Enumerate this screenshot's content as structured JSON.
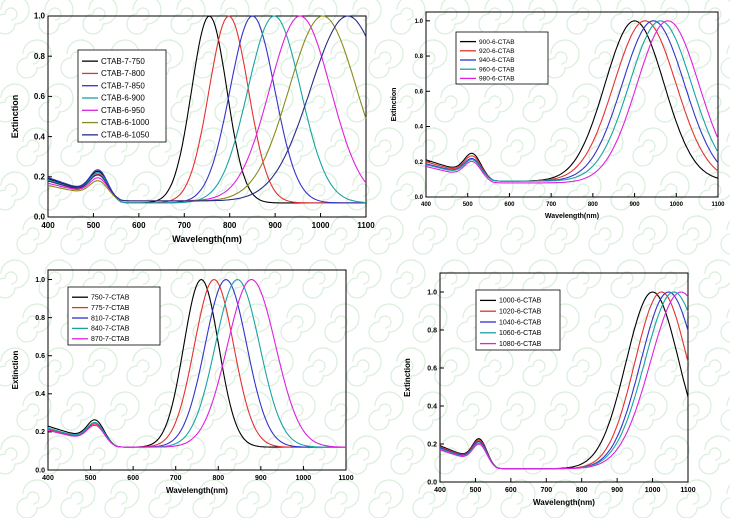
{
  "chart_data": [
    {
      "type": "line",
      "xlabel": "Wavelength(nm)",
      "ylabel": "Extinction",
      "xlim": [
        400,
        1100
      ],
      "ylim": [
        0,
        1.0
      ],
      "xticks": [
        "400",
        "500",
        "600",
        "700",
        "800",
        "900",
        "1000",
        "1100"
      ],
      "yticks": [
        "0.0",
        "0.2",
        "0.4",
        "0.6",
        "0.8",
        "1.0"
      ],
      "legend": "top-left",
      "series": [
        {
          "name": "CTAB-7-750",
          "color": "#000000",
          "peak": 755,
          "width": 52,
          "ir": 0.06,
          "iv": 0.29,
          "floor": 0.07
        },
        {
          "name": "CTAB-7-800",
          "color": "#e53030",
          "peak": 798,
          "width": 58,
          "ir": 0.04,
          "iv": 0.27,
          "floor": 0.07
        },
        {
          "name": "CTAB-7-850",
          "color": "#3333cc",
          "peak": 850,
          "width": 66,
          "ir": 0.07,
          "iv": 0.3,
          "floor": 0.07
        },
        {
          "name": "CTAB-6-900",
          "color": "#1aa3a3",
          "peak": 898,
          "width": 78,
          "ir": 0.11,
          "iv": 0.28,
          "floor": 0.07
        },
        {
          "name": "CTAB-6-950",
          "color": "#e020e0",
          "peak": 955,
          "width": 90,
          "ir": 0.15,
          "iv": 0.24,
          "floor": 0.08
        },
        {
          "name": "CTAB-6-1000",
          "color": "#8a8a1a",
          "peak": 1005,
          "width": 100,
          "ir": 0.19,
          "iv": 0.22,
          "floor": 0.08
        },
        {
          "name": "CTAB-6-1050",
          "color": "#2a2a8a",
          "peak": 1060,
          "width": 110,
          "ir": 0.21,
          "iv": 0.26,
          "floor": 0.08
        }
      ]
    },
    {
      "type": "line",
      "xlabel": "Wavelength(nm)",
      "ylabel": "Extinction",
      "xlim": [
        400,
        1100
      ],
      "ylim": [
        0.0,
        1.05
      ],
      "xticks": [
        "400",
        "500",
        "600",
        "700",
        "800",
        "900",
        "1000",
        "1100"
      ],
      "yticks": [
        "0.0",
        "0.2",
        "0.4",
        "0.6",
        "0.8",
        "1.0"
      ],
      "legend": "top-left",
      "series": [
        {
          "name": "900-6-CTAB",
          "color": "#000000",
          "peak": 900,
          "width": 95,
          "ir": 0.15,
          "iv": 0.31,
          "floor": 0.09
        },
        {
          "name": "920-6-CTAB",
          "color": "#e53030",
          "peak": 925,
          "width": 100,
          "ir": 0.26,
          "iv": 0.29,
          "floor": 0.09
        },
        {
          "name": "940-6-CTAB",
          "color": "#3333cc",
          "peak": 945,
          "width": 100,
          "ir": 0.42,
          "iv": 0.27,
          "floor": 0.09
        },
        {
          "name": "960-6-CTAB",
          "color": "#1aa3a3",
          "peak": 962,
          "width": 100,
          "ir": 0.53,
          "iv": 0.26,
          "floor": 0.09
        },
        {
          "name": "980-6-CTAB",
          "color": "#e020e0",
          "peak": 980,
          "width": 100,
          "ir": 0.65,
          "iv": 0.25,
          "floor": 0.08
        }
      ]
    },
    {
      "type": "line",
      "xlabel": "Wavelength(nm)",
      "ylabel": "Extinction",
      "xlim": [
        400,
        1100
      ],
      "ylim": [
        0.0,
        1.05
      ],
      "xticks": [
        "400",
        "500",
        "600",
        "700",
        "800",
        "900",
        "1000",
        "1100"
      ],
      "yticks": [
        "0.0",
        "0.2",
        "0.4",
        "0.6",
        "0.8",
        "1.0"
      ],
      "legend": "top-left",
      "series": [
        {
          "name": "750-7-CTAB",
          "color": "#000000",
          "peak": 760,
          "width": 55,
          "ir": 0.01,
          "iv": 0.32,
          "floor": 0.12
        },
        {
          "name": "775-7-CTAB",
          "color": "#e53030",
          "peak": 790,
          "width": 62,
          "ir": 0.05,
          "iv": 0.29,
          "floor": 0.12
        },
        {
          "name": "810-7-CTAB",
          "color": "#3333cc",
          "peak": 818,
          "width": 66,
          "ir": 0.06,
          "iv": 0.3,
          "floor": 0.12
        },
        {
          "name": "840-7-CTAB",
          "color": "#1aa3a3",
          "peak": 845,
          "width": 70,
          "ir": 0.07,
          "iv": 0.3,
          "floor": 0.12
        },
        {
          "name": "870-7-CTAB",
          "color": "#e020e0",
          "peak": 878,
          "width": 76,
          "ir": 0.13,
          "iv": 0.28,
          "floor": 0.12
        }
      ]
    },
    {
      "type": "line",
      "xlabel": "Wavelength(nm)",
      "ylabel": "Extinction",
      "xlim": [
        400,
        1100
      ],
      "ylim": [
        0.0,
        1.1
      ],
      "xticks": [
        "400",
        "500",
        "600",
        "700",
        "800",
        "900",
        "1000",
        "1100"
      ],
      "yticks": [
        "0.0",
        "0.2",
        "0.4",
        "0.6",
        "0.8",
        "1.0"
      ],
      "legend": "top-left",
      "series": [
        {
          "name": "1000-6-CTAB",
          "color": "#000000",
          "peak": 1000,
          "width": 100,
          "ir": 0.72,
          "iv": 0.29,
          "floor": 0.07
        },
        {
          "name": "1020-6-CTAB",
          "color": "#e53030",
          "peak": 1025,
          "width": 100,
          "ir": 0.78,
          "iv": 0.28,
          "floor": 0.07
        },
        {
          "name": "1040-6-CTAB",
          "color": "#3333cc",
          "peak": 1045,
          "width": 105,
          "ir": 0.86,
          "iv": 0.27,
          "floor": 0.07
        },
        {
          "name": "1060-6-CTAB",
          "color": "#1aa3a3",
          "peak": 1060,
          "width": 110,
          "ir": 0.94,
          "iv": 0.26,
          "floor": 0.07
        },
        {
          "name": "1080-6-CTAB",
          "color": "#e020e0",
          "peak": 1080,
          "width": 115,
          "ir": 0.99,
          "iv": 0.25,
          "floor": 0.07
        }
      ]
    }
  ]
}
